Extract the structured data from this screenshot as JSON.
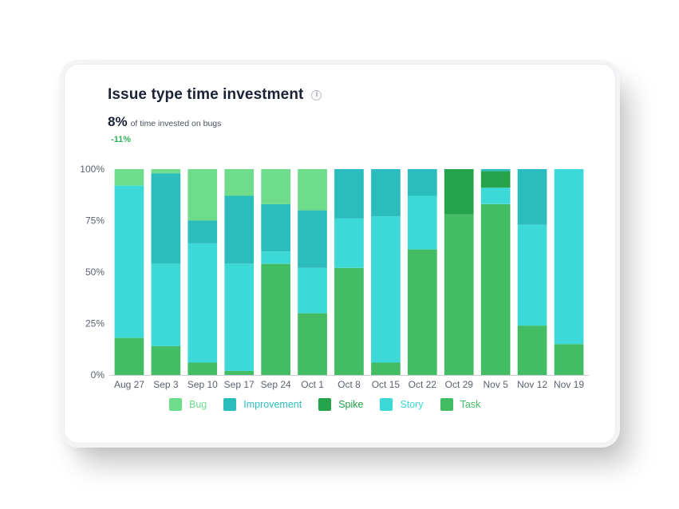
{
  "card": {
    "title": "Issue type time investment",
    "metric_value": "8%",
    "metric_label": "of time invested on bugs",
    "metric_change": "-11%"
  },
  "chart_data": {
    "type": "bar",
    "stacked": true,
    "title": "Issue type time investment",
    "xlabel": "",
    "ylabel": "",
    "ylim": [
      0,
      100
    ],
    "y_ticks": [
      "0%",
      "25%",
      "50%",
      "75%",
      "100%"
    ],
    "grid": false,
    "legend_position": "bottom",
    "categories": [
      "Aug 27",
      "Sep 3",
      "Sep 10",
      "Sep 17",
      "Sep 24",
      "Oct 1",
      "Oct 8",
      "Oct 15",
      "Oct 22",
      "Oct 29",
      "Nov 5",
      "Nov 12",
      "Nov 19"
    ],
    "series": [
      {
        "name": "Task",
        "color": "#43bd64",
        "values": [
          18,
          14,
          6,
          2,
          54,
          30,
          52,
          6,
          61,
          78,
          83,
          24,
          15
        ]
      },
      {
        "name": "Story",
        "color": "#3dd9d9",
        "values": [
          74,
          40,
          58,
          52,
          6,
          22,
          24,
          71,
          26,
          0,
          8,
          49,
          85
        ]
      },
      {
        "name": "Spike",
        "color": "#24a34a",
        "values": [
          0,
          0,
          0,
          0,
          0,
          0,
          0,
          0,
          0,
          22,
          8,
          0,
          0
        ]
      },
      {
        "name": "Improvement",
        "color": "#2bbdbd",
        "values": [
          0,
          44,
          11,
          33,
          23,
          28,
          24,
          23,
          13,
          0,
          1,
          27,
          0
        ]
      },
      {
        "name": "Bug",
        "color": "#6edc8b",
        "values": [
          8,
          2,
          25,
          13,
          17,
          20,
          0,
          0,
          0,
          0,
          0,
          0,
          0
        ]
      }
    ],
    "legend_order": [
      "Bug",
      "Improvement",
      "Spike",
      "Story",
      "Task"
    ]
  }
}
